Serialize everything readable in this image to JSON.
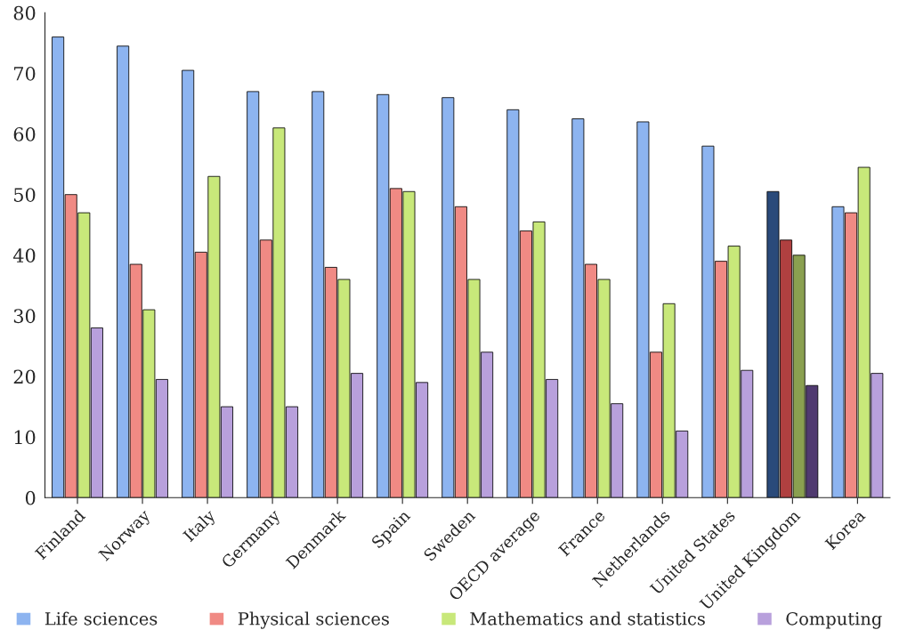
{
  "chart_data": {
    "type": "bar",
    "categories": [
      "Finland",
      "Norway",
      "Italy",
      "Germany",
      "Denmark",
      "Spain",
      "Sweden",
      "OECD average",
      "France",
      "Netherlands",
      "United States",
      "United Kingdom",
      "Korea"
    ],
    "series": [
      {
        "name": "Life sciences",
        "color": "#8db4f0",
        "colors": [
          "#8db4f0",
          "#8db4f0",
          "#8db4f0",
          "#8db4f0",
          "#8db4f0",
          "#8db4f0",
          "#8db4f0",
          "#8db4f0",
          "#8db4f0",
          "#8db4f0",
          "#8db4f0",
          "#2a4a7a",
          "#8db4f0"
        ],
        "values": [
          76,
          74.5,
          70.5,
          67,
          67,
          66.5,
          66,
          64,
          62.5,
          62,
          58,
          50.5,
          48
        ]
      },
      {
        "name": "Physical sciences",
        "color": "#f08a84",
        "colors": [
          "#f08a84",
          "#f08a84",
          "#f08a84",
          "#f08a84",
          "#f08a84",
          "#f08a84",
          "#f08a84",
          "#f08a84",
          "#f08a84",
          "#f08a84",
          "#f08a84",
          "#b04040",
          "#f08a84"
        ],
        "values": [
          50,
          38.5,
          40.5,
          42.5,
          38,
          51,
          48,
          44,
          38.5,
          24,
          39,
          42.5,
          47
        ]
      },
      {
        "name": "Mathematics and statistics",
        "color": "#c8e87a",
        "colors": [
          "#c8e87a",
          "#c8e87a",
          "#c8e87a",
          "#c8e87a",
          "#c8e87a",
          "#c8e87a",
          "#c8e87a",
          "#c8e87a",
          "#c8e87a",
          "#c8e87a",
          "#c8e87a",
          "#8aa050",
          "#c8e87a"
        ],
        "values": [
          47,
          31,
          53,
          61,
          36,
          50.5,
          36,
          45.5,
          36,
          32,
          41.5,
          40,
          54.5
        ]
      },
      {
        "name": "Computing",
        "color": "#b8a0dc",
        "colors": [
          "#b8a0dc",
          "#b8a0dc",
          "#b8a0dc",
          "#b8a0dc",
          "#b8a0dc",
          "#b8a0dc",
          "#b8a0dc",
          "#b8a0dc",
          "#b8a0dc",
          "#b8a0dc",
          "#b8a0dc",
          "#503a70",
          "#b8a0dc"
        ],
        "values": [
          28,
          19.5,
          15,
          15,
          20.5,
          19,
          24,
          19.5,
          15.5,
          11,
          21,
          18.5,
          20.5
        ]
      }
    ],
    "ylim": [
      0,
      80
    ],
    "yticks": [
      0,
      10,
      20,
      30,
      40,
      50,
      60,
      70,
      80
    ],
    "grid": false,
    "legend": "bottom"
  }
}
